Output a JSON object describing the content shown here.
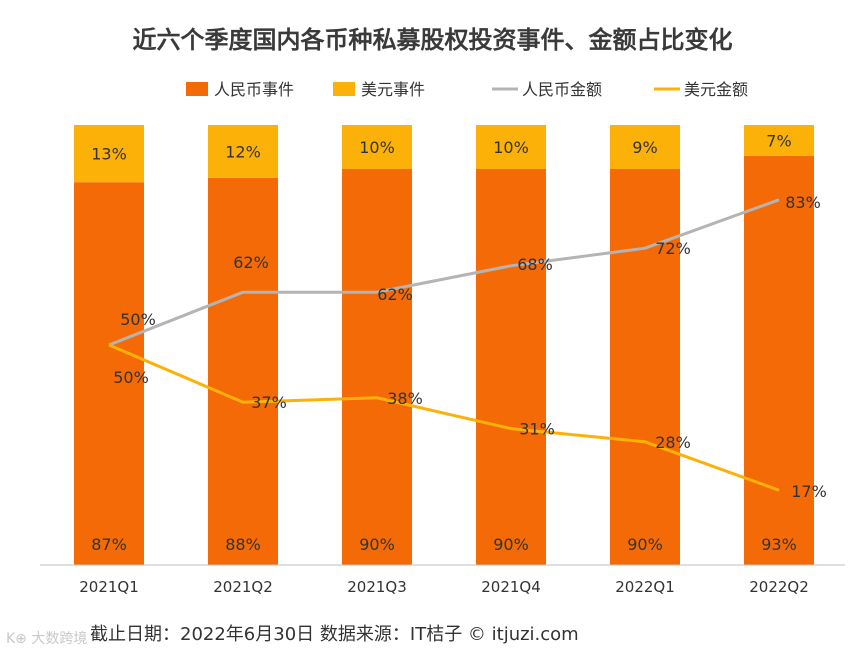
{
  "chart_data": {
    "type": "bar",
    "title": "近六个季度国内各币种私募股权投资事件、金额占比变化",
    "categories": [
      "2021Q1",
      "2021Q2",
      "2021Q3",
      "2021Q4",
      "2022Q1",
      "2022Q2"
    ],
    "series": [
      {
        "name": "人民币事件",
        "kind": "stacked-bar",
        "color": "#f46a07",
        "values": [
          87,
          88,
          90,
          90,
          90,
          93
        ],
        "labels": [
          "87%",
          "88%",
          "90%",
          "90%",
          "90%",
          "93%"
        ]
      },
      {
        "name": "美元事件",
        "kind": "stacked-bar",
        "color": "#fbb108",
        "values": [
          13,
          12,
          10,
          10,
          9,
          7
        ],
        "labels": [
          "13%",
          "12%",
          "10%",
          "10%",
          "9%",
          "7%"
        ]
      },
      {
        "name": "人民币金额",
        "kind": "line",
        "color": "#b4b4b4",
        "values": [
          50,
          62,
          62,
          68,
          72,
          83
        ],
        "labels": [
          "50%",
          "62%",
          "62%",
          "68%",
          "72%",
          "83%"
        ]
      },
      {
        "name": "美元金额",
        "kind": "line",
        "color": "#fbb108",
        "values": [
          50,
          37,
          38,
          31,
          28,
          17
        ],
        "labels": [
          "50%",
          "37%",
          "38%",
          "31%",
          "28%",
          "17%"
        ]
      }
    ],
    "ylim": [
      0,
      100
    ],
    "legend_position": "top"
  },
  "footer": {
    "note": "截止日期：2022年6月30日    数据来源：IT桔子 © itjuzi.com"
  },
  "watermark": {
    "logo": "K⊕ 大数跨境"
  }
}
